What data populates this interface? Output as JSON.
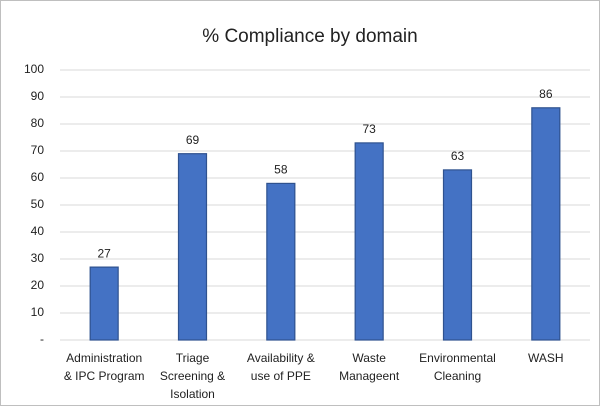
{
  "chart_data": {
    "type": "bar",
    "title": "% Compliance by domain",
    "categories": [
      "Administration & IPC Program",
      "Triage Screening & Isolation",
      "Availability & use of PPE",
      "Waste Manageent",
      "Environmental Cleaning",
      "WASH"
    ],
    "values": [
      27,
      69,
      58,
      73,
      63,
      86
    ],
    "color": "#4472c4",
    "ylim": [
      0,
      100
    ],
    "yticks": [
      {
        "value": 0,
        "label": "-"
      },
      10,
      20,
      30,
      40,
      50,
      60,
      70,
      80,
      90,
      100
    ],
    "grid": true
  }
}
